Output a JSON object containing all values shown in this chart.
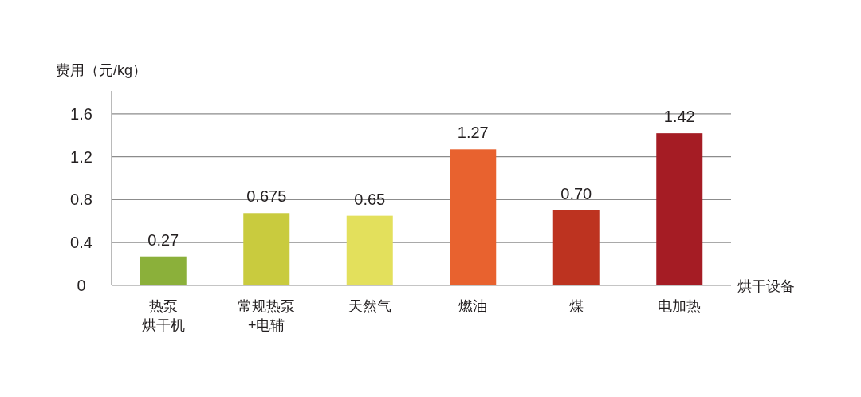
{
  "chart_data": {
    "type": "bar",
    "ylabel": "费用（元/kg）",
    "xlabel": "烘干设备",
    "categories": [
      "热泵烘干机",
      "常规热泵+电辅",
      "天然气",
      "燃油",
      "煤",
      "电加热"
    ],
    "values": [
      0.27,
      0.675,
      0.65,
      1.27,
      0.7,
      1.42
    ],
    "value_labels": [
      "0.27",
      "0.675",
      "0.65",
      "1.27",
      "0.70",
      "1.42"
    ],
    "colors": [
      "#8bb03a",
      "#c9cb3e",
      "#e3e05c",
      "#e8622f",
      "#bd3320",
      "#a51c24"
    ],
    "ylim": [
      0,
      1.8
    ],
    "yticks": [
      0,
      0.4,
      0.8,
      1.2,
      1.6
    ],
    "grid": "y"
  }
}
